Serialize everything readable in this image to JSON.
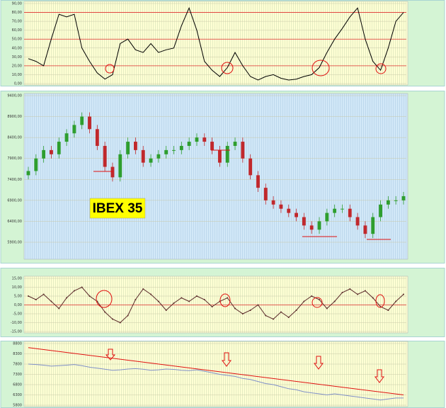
{
  "chart_data": [
    {
      "type": "line",
      "values": [
        28,
        25,
        20,
        50,
        78,
        75,
        78,
        40,
        25,
        12,
        5,
        10,
        45,
        50,
        38,
        35,
        45,
        35,
        38,
        40,
        65,
        85,
        60,
        25,
        15,
        8,
        18,
        35,
        20,
        8,
        4,
        8,
        10,
        6,
        4,
        5,
        8,
        10,
        18,
        35,
        50,
        62,
        75,
        85,
        50,
        25,
        15,
        40,
        70,
        80
      ],
      "color": "#000000",
      "ylim": [
        0,
        90
      ],
      "yticks": [
        {
          "value": 0,
          "label": "0,00"
        },
        {
          "value": 10,
          "label": "10,00"
        },
        {
          "value": 20,
          "label": "20,00"
        },
        {
          "value": 30,
          "label": "30,00"
        },
        {
          "value": 40,
          "label": "40,00"
        },
        {
          "value": 50,
          "label": "50,00"
        },
        {
          "value": 60,
          "label": "60,00"
        },
        {
          "value": 70,
          "label": "70,00"
        },
        {
          "value": 80,
          "label": "80,00"
        },
        {
          "value": 90,
          "label": "90,00"
        }
      ],
      "reference_lines": [
        20,
        50,
        80
      ],
      "reference_color": "#e03030"
    },
    {
      "type": "candlestick",
      "open": [
        7500,
        7600,
        7900,
        8100,
        8000,
        8300,
        8500,
        8700,
        8900,
        8600,
        8200,
        7700,
        7450,
        8000,
        8300,
        8100,
        7800,
        7900,
        8000,
        8100,
        8100,
        8200,
        8300,
        8400,
        8300,
        8100,
        7800,
        8200,
        8300,
        7900,
        7500,
        7200,
        6900,
        6800,
        6700,
        6600,
        6500,
        6300,
        6200,
        6400,
        6600,
        6700,
        6700,
        6500,
        6300,
        6100,
        6500,
        6800,
        6900,
        6900
      ],
      "close": [
        7600,
        7900,
        8100,
        8000,
        8300,
        8500,
        8700,
        8900,
        8600,
        8200,
        7700,
        7450,
        8000,
        8300,
        8100,
        7800,
        7900,
        8000,
        8100,
        8100,
        8200,
        8300,
        8400,
        8300,
        8100,
        7800,
        8200,
        8300,
        7900,
        7500,
        7200,
        6900,
        6800,
        6700,
        6600,
        6500,
        6300,
        6200,
        6400,
        6600,
        6700,
        6700,
        6500,
        6300,
        6100,
        6500,
        6800,
        6900,
        6900,
        7000
      ],
      "high": [
        7700,
        8000,
        8200,
        8200,
        8400,
        8600,
        8800,
        9000,
        9000,
        8700,
        8300,
        7800,
        8100,
        8400,
        8400,
        8200,
        8000,
        8100,
        8200,
        8200,
        8300,
        8400,
        8500,
        8500,
        8400,
        8200,
        8300,
        8400,
        8400,
        8000,
        7600,
        7300,
        7000,
        6900,
        6800,
        6700,
        6600,
        6400,
        6500,
        6700,
        6800,
        6800,
        6800,
        6600,
        6400,
        6600,
        6900,
        7000,
        7000,
        7100
      ],
      "low": [
        7400,
        7500,
        7800,
        7900,
        7900,
        8200,
        8400,
        8600,
        8500,
        8100,
        7600,
        7350,
        7350,
        7900,
        8000,
        7700,
        7700,
        7800,
        7900,
        8000,
        8000,
        8100,
        8200,
        8200,
        8000,
        7700,
        7700,
        8100,
        7800,
        7400,
        7100,
        6800,
        6700,
        6600,
        6500,
        6400,
        6200,
        6100,
        6100,
        6300,
        6500,
        6600,
        6400,
        6200,
        6000,
        6000,
        6400,
        6700,
        6800,
        6800
      ],
      "up_color": "#2e9e2e",
      "down_color": "#c0282c",
      "ylim": [
        5900,
        9400
      ],
      "yticks": [
        {
          "value": 5900,
          "label": "5900,00"
        },
        {
          "value": 6400,
          "label": "6400,00"
        },
        {
          "value": 6900,
          "label": "6900,00"
        },
        {
          "value": 7400,
          "label": "7400,00"
        },
        {
          "value": 7900,
          "label": "7900,00"
        },
        {
          "value": 8400,
          "label": "8400,00"
        },
        {
          "value": 8900,
          "label": "8900,00"
        },
        {
          "value": 9400,
          "label": "9400,00"
        }
      ],
      "annotation": "IBEX 35"
    },
    {
      "type": "line",
      "values": [
        5,
        3,
        6,
        2,
        -2,
        4,
        8,
        10,
        5,
        2,
        -4,
        -8,
        -10,
        -6,
        3,
        9,
        6,
        2,
        -3,
        1,
        4,
        2,
        5,
        3,
        -1,
        2,
        4,
        -2,
        -5,
        -3,
        0,
        -6,
        -8,
        -4,
        -7,
        -3,
        2,
        5,
        3,
        -2,
        2,
        7,
        9,
        6,
        8,
        4,
        -1,
        -3,
        2,
        6
      ],
      "color": "#5a2a2a",
      "markers": true,
      "ylim": [
        -15,
        15
      ],
      "yticks": [
        {
          "value": -15,
          "label": "-15,00"
        },
        {
          "value": -10,
          "label": "-10,00"
        },
        {
          "value": -5,
          "label": "-5,00"
        },
        {
          "value": 0,
          "label": "0,00"
        },
        {
          "value": 5,
          "label": "5,00"
        },
        {
          "value": 10,
          "label": "10,00"
        },
        {
          "value": 15,
          "label": "15,00"
        }
      ],
      "reference_lines": [
        0
      ],
      "reference_color": "#e03030"
    },
    {
      "type": "line",
      "series": [
        {
          "color": "#8090c8",
          "values": [
            7800,
            7780,
            7750,
            7700,
            7720,
            7750,
            7780,
            7720,
            7650,
            7600,
            7550,
            7500,
            7520,
            7560,
            7580,
            7550,
            7500,
            7520,
            7560,
            7540,
            7500,
            7480,
            7520,
            7450,
            7380,
            7300,
            7250,
            7200,
            7100,
            7050,
            6950,
            6850,
            6800,
            6700,
            6600,
            6550,
            6450,
            6400,
            6350,
            6300,
            6350,
            6300,
            6250,
            6200,
            6150,
            6100,
            6050,
            6100,
            6150,
            6150
          ]
        },
        {
          "color": "#e01010",
          "values": [
            8600,
            6300
          ]
        }
      ],
      "ylim": [
        5800,
        8800
      ],
      "yticks": [
        5800,
        6300,
        6800,
        7300,
        7800,
        8300,
        8800
      ]
    }
  ]
}
